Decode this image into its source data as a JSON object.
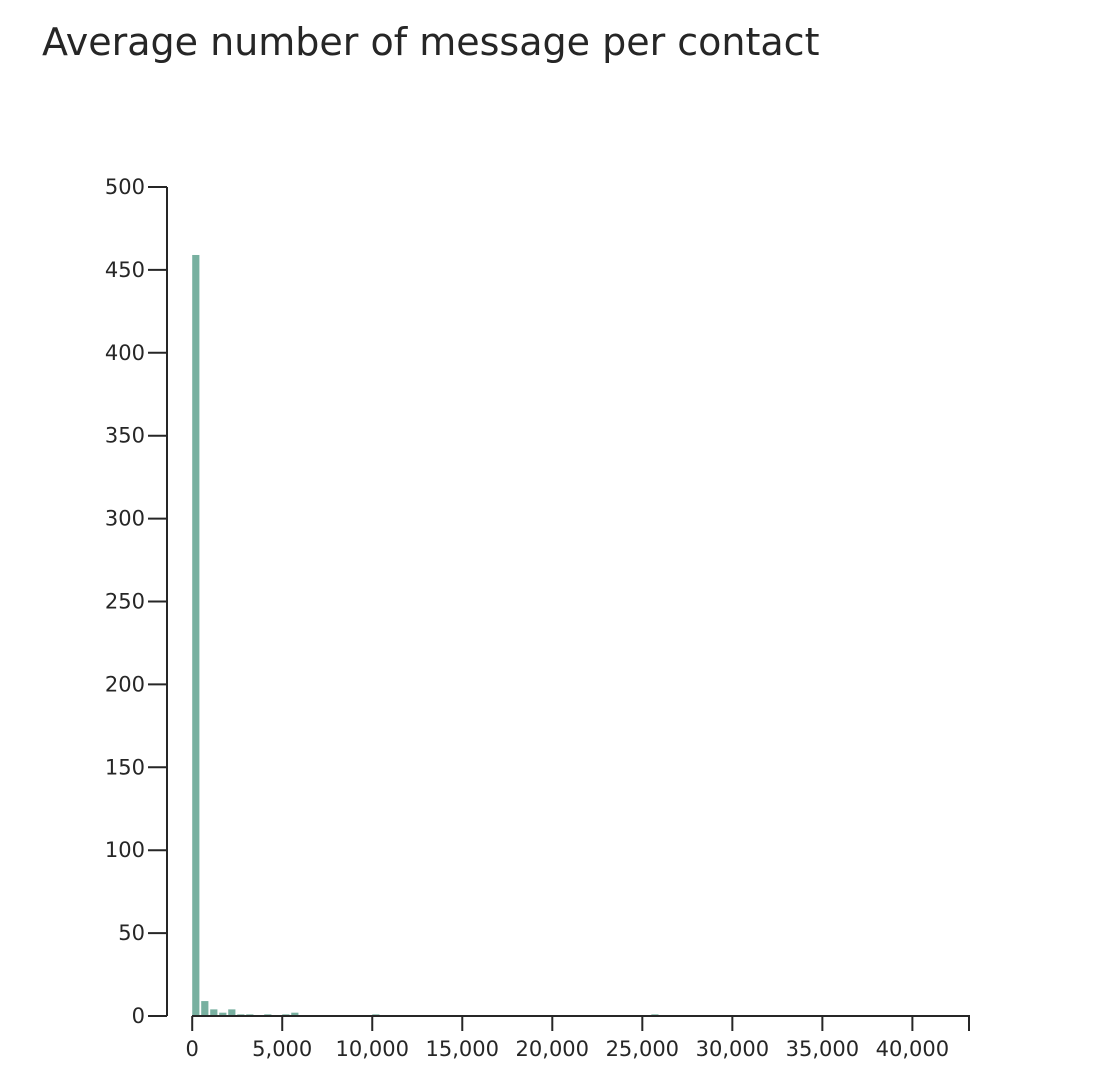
{
  "chart_data": {
    "type": "bar",
    "title": "Average number of message per contact",
    "xlabel": "",
    "ylabel": "",
    "xlim": [
      -1400,
      43200
    ],
    "ylim": [
      0,
      500
    ],
    "x_ticks": [
      0,
      5000,
      10000,
      15000,
      20000,
      25000,
      30000,
      35000,
      40000
    ],
    "x_tick_labels": [
      "0",
      "5,000",
      "10,000",
      "15,000",
      "20,000",
      "25,000",
      "30,000",
      "35,000",
      "40,000"
    ],
    "y_ticks": [
      0,
      50,
      100,
      150,
      200,
      250,
      300,
      350,
      400,
      450,
      500
    ],
    "y_tick_labels": [
      "0",
      "50",
      "100",
      "150",
      "200",
      "250",
      "300",
      "350",
      "400",
      "450",
      "500"
    ],
    "bin_width": 400,
    "bins": [
      {
        "x0": 0,
        "x1": 400,
        "count": 459
      },
      {
        "x0": 500,
        "x1": 900,
        "count": 9
      },
      {
        "x0": 1000,
        "x1": 1400,
        "count": 4
      },
      {
        "x0": 1500,
        "x1": 1900,
        "count": 2
      },
      {
        "x0": 2000,
        "x1": 2400,
        "count": 4
      },
      {
        "x0": 2500,
        "x1": 2900,
        "count": 1
      },
      {
        "x0": 3000,
        "x1": 3400,
        "count": 1
      },
      {
        "x0": 4000,
        "x1": 4400,
        "count": 1
      },
      {
        "x0": 5000,
        "x1": 5400,
        "count": 1
      },
      {
        "x0": 5500,
        "x1": 5900,
        "count": 2
      },
      {
        "x0": 10000,
        "x1": 10400,
        "count": 1
      },
      {
        "x0": 25500,
        "x1": 25900,
        "count": 1
      }
    ],
    "bar_color": "#78b0a0",
    "grid": false,
    "legend": "none"
  }
}
